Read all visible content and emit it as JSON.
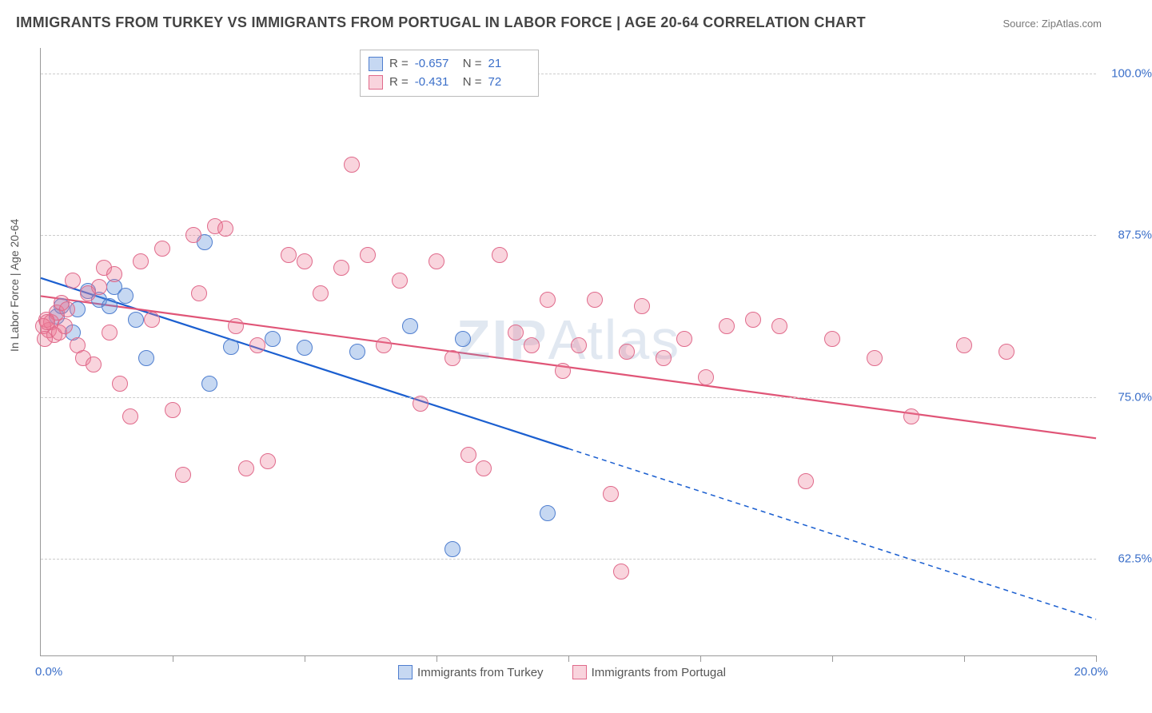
{
  "title": "IMMIGRANTS FROM TURKEY VS IMMIGRANTS FROM PORTUGAL IN LABOR FORCE | AGE 20-64 CORRELATION CHART",
  "source_label": "Source: ZipAtlas.com",
  "watermark_a": "ZIP",
  "watermark_b": "Atlas",
  "y_axis_title": "In Labor Force | Age 20-64",
  "x_min_label": "0.0%",
  "x_max_label": "20.0%",
  "plot": {
    "x_min": 0,
    "x_max": 20,
    "y_min": 55,
    "y_max": 102,
    "y_grid": [
      62.5,
      75.0,
      87.5,
      100.0
    ],
    "y_grid_labels": [
      "62.5%",
      "75.0%",
      "87.5%",
      "100.0%"
    ],
    "x_ticks": [
      2.5,
      5.0,
      7.5,
      10.0,
      12.5,
      15.0,
      17.5,
      20.0
    ]
  },
  "series": [
    {
      "key": "turkey",
      "label": "Immigrants from Turkey",
      "stats": {
        "R_label": "R =",
        "R": "-0.657",
        "N_label": "N =",
        "N": "21"
      },
      "marker_fill": "rgba(93,143,219,0.35)",
      "marker_stroke": "#4f7ecf",
      "line_color": "#1b5fd0",
      "line_width": 2.2,
      "trend": {
        "y_at_xmin": 84.2,
        "y_at_xmax": 57.8,
        "solid_until_x": 10.0
      },
      "points": [
        [
          0.3,
          81.2
        ],
        [
          0.4,
          82.0
        ],
        [
          0.6,
          80.0
        ],
        [
          0.7,
          81.8
        ],
        [
          0.9,
          83.2
        ],
        [
          1.1,
          82.5
        ],
        [
          1.3,
          82.0
        ],
        [
          1.4,
          83.5
        ],
        [
          1.6,
          82.8
        ],
        [
          1.8,
          81.0
        ],
        [
          2.0,
          78.0
        ],
        [
          3.1,
          87.0
        ],
        [
          3.2,
          76.0
        ],
        [
          3.6,
          78.9
        ],
        [
          4.4,
          79.5
        ],
        [
          5.0,
          78.8
        ],
        [
          6.0,
          78.5
        ],
        [
          8.0,
          79.5
        ],
        [
          9.6,
          66.0
        ],
        [
          7.8,
          63.2
        ],
        [
          7.0,
          80.5
        ]
      ]
    },
    {
      "key": "portugal",
      "label": "Immigrants from Portugal",
      "stats": {
        "R_label": "R =",
        "R": "-0.431",
        "N_label": "N =",
        "N": "72"
      },
      "marker_fill": "rgba(236,120,150,0.32)",
      "marker_stroke": "#e06a8b",
      "line_color": "#e05577",
      "line_width": 2.2,
      "trend": {
        "y_at_xmin": 82.8,
        "y_at_xmax": 71.8,
        "solid_until_x": 20.0
      },
      "points": [
        [
          0.1,
          81.0
        ],
        [
          0.15,
          80.2
        ],
        [
          0.2,
          80.8
        ],
        [
          0.25,
          79.8
        ],
        [
          0.3,
          81.5
        ],
        [
          0.35,
          80.0
        ],
        [
          0.4,
          82.3
        ],
        [
          0.45,
          80.5
        ],
        [
          0.5,
          81.8
        ],
        [
          0.6,
          84.0
        ],
        [
          0.7,
          79.0
        ],
        [
          0.8,
          78.0
        ],
        [
          0.9,
          83.0
        ],
        [
          1.0,
          77.5
        ],
        [
          1.1,
          83.5
        ],
        [
          1.2,
          85.0
        ],
        [
          1.3,
          80.0
        ],
        [
          1.4,
          84.5
        ],
        [
          1.5,
          76.0
        ],
        [
          1.7,
          73.5
        ],
        [
          1.9,
          85.5
        ],
        [
          2.1,
          81.0
        ],
        [
          2.3,
          86.5
        ],
        [
          2.5,
          74.0
        ],
        [
          2.7,
          69.0
        ],
        [
          2.9,
          87.5
        ],
        [
          3.0,
          83.0
        ],
        [
          3.3,
          88.2
        ],
        [
          3.5,
          88.0
        ],
        [
          3.7,
          80.5
        ],
        [
          3.9,
          69.5
        ],
        [
          4.1,
          79.0
        ],
        [
          4.3,
          70.0
        ],
        [
          4.7,
          86.0
        ],
        [
          5.0,
          85.5
        ],
        [
          5.3,
          83.0
        ],
        [
          5.7,
          85.0
        ],
        [
          5.9,
          93.0
        ],
        [
          6.2,
          86.0
        ],
        [
          6.5,
          79.0
        ],
        [
          6.8,
          84.0
        ],
        [
          7.2,
          74.5
        ],
        [
          7.5,
          85.5
        ],
        [
          7.8,
          78.0
        ],
        [
          8.1,
          70.5
        ],
        [
          8.4,
          69.5
        ],
        [
          8.7,
          86.0
        ],
        [
          9.0,
          80.0
        ],
        [
          9.3,
          79.0
        ],
        [
          9.6,
          82.5
        ],
        [
          9.9,
          77.0
        ],
        [
          10.2,
          79.0
        ],
        [
          10.5,
          82.5
        ],
        [
          10.8,
          67.5
        ],
        [
          11.1,
          78.5
        ],
        [
          11.4,
          82.0
        ],
        [
          11.8,
          78.0
        ],
        [
          12.2,
          79.5
        ],
        [
          12.6,
          76.5
        ],
        [
          13.0,
          80.5
        ],
        [
          13.5,
          81.0
        ],
        [
          14.0,
          80.5
        ],
        [
          14.5,
          68.5
        ],
        [
          11.0,
          61.5
        ],
        [
          15.0,
          79.5
        ],
        [
          15.8,
          78.0
        ],
        [
          16.5,
          73.5
        ],
        [
          17.5,
          79.0
        ],
        [
          18.3,
          78.5
        ],
        [
          0.05,
          80.5
        ],
        [
          0.08,
          79.5
        ],
        [
          0.12,
          80.8
        ]
      ]
    }
  ]
}
